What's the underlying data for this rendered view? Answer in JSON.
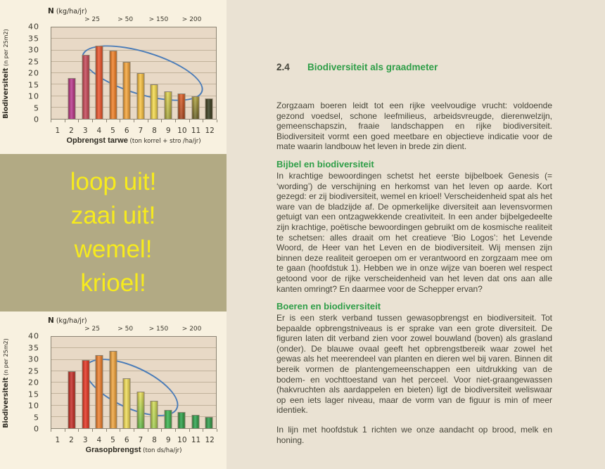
{
  "page": {
    "left_bg": "#f8f1e0",
    "right_bg": "#eae2d3",
    "accent_green": "#2f9e48",
    "ellipse_blue": "#4a7cb8"
  },
  "chart_data": [
    {
      "type": "bar",
      "n_axis": {
        "label": "N",
        "unit": "(kg/ha/jr)",
        "thresholds": [
          "> 25",
          "> 50",
          "> 150",
          "> 200"
        ],
        "threshold_pos_pct": [
          25,
          45,
          65,
          85
        ]
      },
      "categories": [
        "1",
        "2",
        "3",
        "4",
        "5",
        "6",
        "7",
        "8",
        "9",
        "10",
        "11",
        "12"
      ],
      "values": [
        null,
        18,
        28,
        32,
        30,
        25,
        20,
        15,
        12,
        11,
        10,
        9
      ],
      "colors": [
        null,
        "#b62e8b",
        "#c44156",
        "#ea4d25",
        "#f17d20",
        "#f6a435",
        "#f9c43e",
        "#f4dc4a",
        [
          "#e3d94c",
          "#9fa338"
        ],
        [
          "#e05a20",
          "#a03c16"
        ],
        [
          "#b0a53a",
          "#5f5c22"
        ],
        "#2b3418"
      ],
      "ylabel_main": "Biodiversiteit",
      "ylabel_sub": "(n per 25m2)",
      "xlabel_main": "Opbrengst tarwe",
      "xlabel_sub": "(ton korrel + stro /ha/jr)",
      "ylim": [
        0,
        40
      ],
      "yticks": [
        40,
        35,
        30,
        25,
        20,
        15,
        10,
        5,
        0
      ],
      "grid": true,
      "legend": "none",
      "annotation_ellipse": {
        "x_from": 3,
        "x_to": 9,
        "color": "#4a7cb8"
      },
      "plot_bg": "#e8d9c6"
    },
    {
      "type": "bar",
      "n_axis": {
        "label": "N",
        "unit": "(kg/ha/jr)",
        "thresholds": [
          "> 25",
          "> 50",
          "> 150",
          "> 200"
        ],
        "threshold_pos_pct": [
          25,
          45,
          65,
          85
        ]
      },
      "categories": [
        "1",
        "2",
        "3",
        "4",
        "5",
        "6",
        "7",
        "8",
        "9",
        "10",
        "11",
        "12"
      ],
      "values": [
        null,
        25,
        30,
        32,
        34,
        22,
        16,
        12,
        8,
        7,
        6,
        5
      ],
      "colors": [
        null,
        "#c32420",
        "#e62d1d",
        "#ee7c27",
        "#efa339",
        "#efdf55",
        [
          "#eee457",
          "#58bb48"
        ],
        [
          "#d4e055",
          "#9ed04e"
        ],
        "#2db44b",
        "#1f9d43",
        "#21a24b",
        "#219b46"
      ],
      "ylabel_main": "Biodiversiteit",
      "ylabel_sub": "(n per 25m2)",
      "xlabel_main": "Grasopbrengst",
      "xlabel_sub": "(ton ds/ha/jr)",
      "ylim": [
        0,
        40
      ],
      "yticks": [
        40,
        35,
        30,
        25,
        20,
        15,
        10,
        5,
        0
      ],
      "grid": true,
      "legend": "none",
      "annotation_ellipse": {
        "x_from": 3,
        "x_to": 9,
        "color": "#4a7cb8"
      },
      "plot_bg": "#e8d9c6"
    }
  ],
  "quote_box": {
    "bg": "#b2aa84",
    "text_color": "#f7eb1d",
    "lines": [
      "loop uit!",
      "zaai uit!",
      "wemel!",
      "krioel!"
    ]
  },
  "article": {
    "section_number": "2.4",
    "section_title": "Biodiversiteit als graadmeter",
    "intro": "Zorgzaam boeren leidt tot een rijke veelvoudige vrucht: voldoende gezond voedsel, schone leefmilieus, arbeidsvreugde, dierenwelzijn, gemeenschapszin, fraaie landschappen en rijke biodiversiteit. Biodiversiteit vormt een goed meetbare en objectieve indicatie voor de mate waarin landbouw het leven in brede zin dient.",
    "sections": [
      {
        "heading": "Bijbel en biodiversiteit",
        "body": "In krachtige bewoordingen schetst het eerste bijbelboek Genesis (= ‘wording’) de verschijning en herkomst van het leven op aarde. Kort gezegd: er zij biodiversiteit, wemel en krioel! Verscheidenheid spat als het ware van de bladzijde af. De opmerkelijke diversiteit aan levensvormen getuigt van een ontzagwekkende creativiteit. In een ander bijbelgedeelte zijn krachtige, poëtische bewoordingen gebruikt om de kosmische realiteit te schetsen: alles draait om het creatieve ‘Bio Logos’: het Levende Woord, de Heer van het Leven en de biodiversiteit. Wij mensen zijn binnen deze realiteit geroepen om er verantwoord en zorgzaam mee om te gaan (hoofdstuk 1). Hebben we in onze wijze van boeren wel respect getoond voor de rijke verscheidenheid van het leven dat ons aan alle kanten omringt? En daarmee voor de Schepper ervan?"
      },
      {
        "heading": "Boeren en biodiversiteit",
        "body": "Er is een sterk verband tussen gewasopbrengst en biodiversiteit. Tot bepaalde opbrengstniveaus is er sprake van een grote diversiteit. De figuren laten dit verband zien voor zowel bouwland (boven) als grasland (onder). De blauwe ovaal geeft het opbrengstbereik waar zowel het gewas als het meerendeel van planten en dieren wel bij varen. Binnen dit bereik vormen de plantengemeenschappen een uitdrukking van de bodem- en vochttoestand van het perceel. Voor niet-graangewassen (hakvruchten als aardappelen en bieten) ligt de biodiversiteit weliswaar op een iets lager niveau, maar de vorm van de figuur is min of meer identiek."
      }
    ],
    "closing": "In lijn met hoofdstuk 1 richten we onze aandacht op brood, melk en honing."
  }
}
